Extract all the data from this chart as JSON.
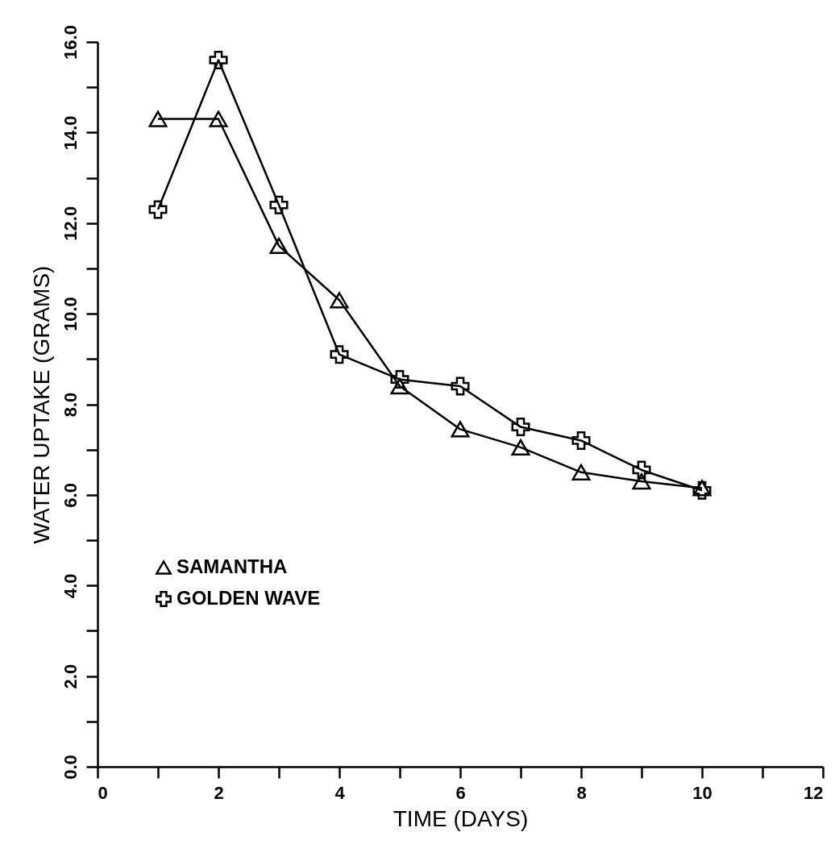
{
  "chart_data": {
    "type": "line",
    "xlabel": "TIME (DAYS)",
    "ylabel": "WATER UPTAKE (GRAMS)",
    "x": [
      1,
      2,
      3,
      4,
      5,
      6,
      7,
      8,
      9,
      10
    ],
    "series": [
      {
        "name": "SAMANTHA",
        "color": "#000000",
        "marker": "triangle",
        "values": [
          14.3,
          14.3,
          11.5,
          10.3,
          8.4,
          7.45,
          7.05,
          6.5,
          6.3,
          6.15
        ]
      },
      {
        "name": "GOLDEN WAVE",
        "color": "#000000",
        "marker": "cross",
        "values": [
          12.3,
          15.6,
          12.4,
          9.1,
          8.55,
          8.4,
          7.5,
          7.2,
          6.55,
          6.1
        ]
      }
    ],
    "xlim": [
      0,
      12
    ],
    "xticks": [
      0,
      {
        "value": 1,
        "label": null
      },
      2,
      {
        "value": 3,
        "label": null
      },
      4,
      {
        "value": 5,
        "label": null
      },
      6,
      {
        "value": 7,
        "label": null
      },
      8,
      {
        "value": 9,
        "label": null
      },
      10,
      {
        "value": 11,
        "label": null
      },
      12
    ],
    "ylim": [
      0,
      16
    ],
    "yticks": [
      {
        "value": 0,
        "label": "0.0"
      },
      {
        "value": 1,
        "label": null
      },
      {
        "value": 2,
        "label": "2.0"
      },
      {
        "value": 3,
        "label": null
      },
      {
        "value": 4,
        "label": "4.0"
      },
      {
        "value": 5,
        "label": null
      },
      {
        "value": 6,
        "label": "6.0"
      },
      {
        "value": 7,
        "label": null
      },
      {
        "value": 8,
        "label": "8.0"
      },
      {
        "value": 9,
        "label": null
      },
      {
        "value": 10,
        "label": "10.0"
      },
      {
        "value": 11,
        "label": null
      },
      {
        "value": 12,
        "label": "12.0"
      },
      {
        "value": 13,
        "label": null
      },
      {
        "value": 14,
        "label": "14.0"
      },
      {
        "value": 15,
        "label": null
      },
      {
        "value": 16,
        "label": "16.0"
      }
    ],
    "grid": false,
    "legend": "left",
    "line_style": "solid"
  }
}
